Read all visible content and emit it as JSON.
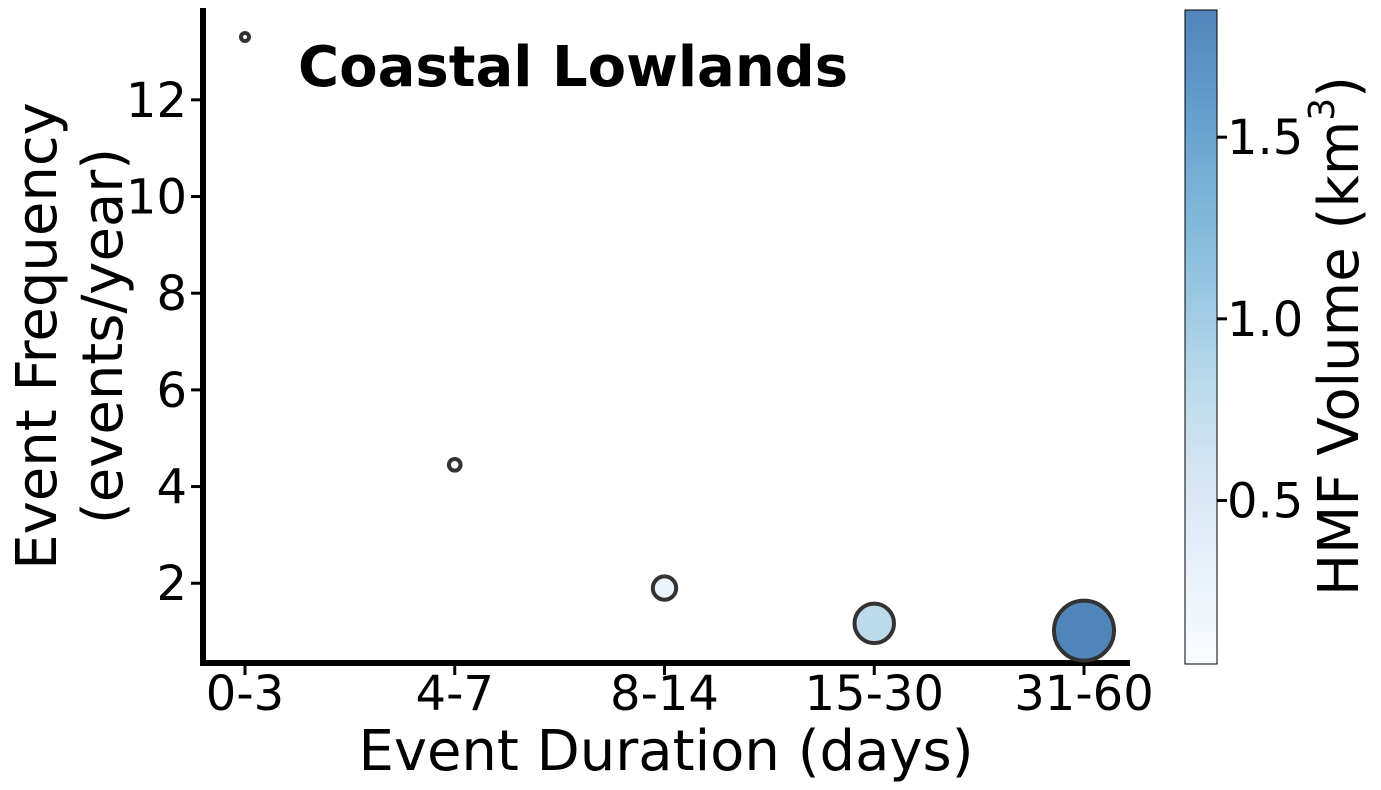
{
  "chart_data": {
    "type": "scatter",
    "title": "Coastal Lowlands",
    "xlabel": "Event Duration (days)",
    "ylabel": [
      "Event Frequency",
      "(events/year)"
    ],
    "categories": [
      "0-3",
      "4-7",
      "8-14",
      "15-30",
      "31-60"
    ],
    "series": [
      {
        "points": [
          {
            "x": "0-3",
            "y": 13.3,
            "volume": 0.02
          },
          {
            "x": "4-7",
            "y": 4.45,
            "volume": 0.07
          },
          {
            "x": "8-14",
            "y": 1.9,
            "volume": 0.28
          },
          {
            "x": "15-30",
            "y": 1.17,
            "volume": 0.8
          },
          {
            "x": "31-60",
            "y": 1.02,
            "volume": 1.85
          }
        ]
      }
    ],
    "ylim": [
      0.35,
      13.9
    ],
    "yticks": [
      2,
      4,
      6,
      8,
      10,
      12
    ],
    "colorbar": {
      "label_main": "HMF Volume (km",
      "label_sup": "3",
      "label_end": ")",
      "range": [
        0.05,
        1.85
      ],
      "ticks": [
        0.5,
        1.0,
        1.5
      ],
      "tick_labels": [
        "0.5",
        "1.0",
        "1.5"
      ],
      "colormap": "Blues",
      "colors": [
        "#f7fbff",
        "#deebf7",
        "#c6dbef",
        "#9ecae1",
        "#6baed6",
        "#4292c6",
        "#2171b5",
        "#08519c"
      ],
      "alpha": 0.7
    },
    "marker_edge_color": "#333333",
    "grid": false
  }
}
